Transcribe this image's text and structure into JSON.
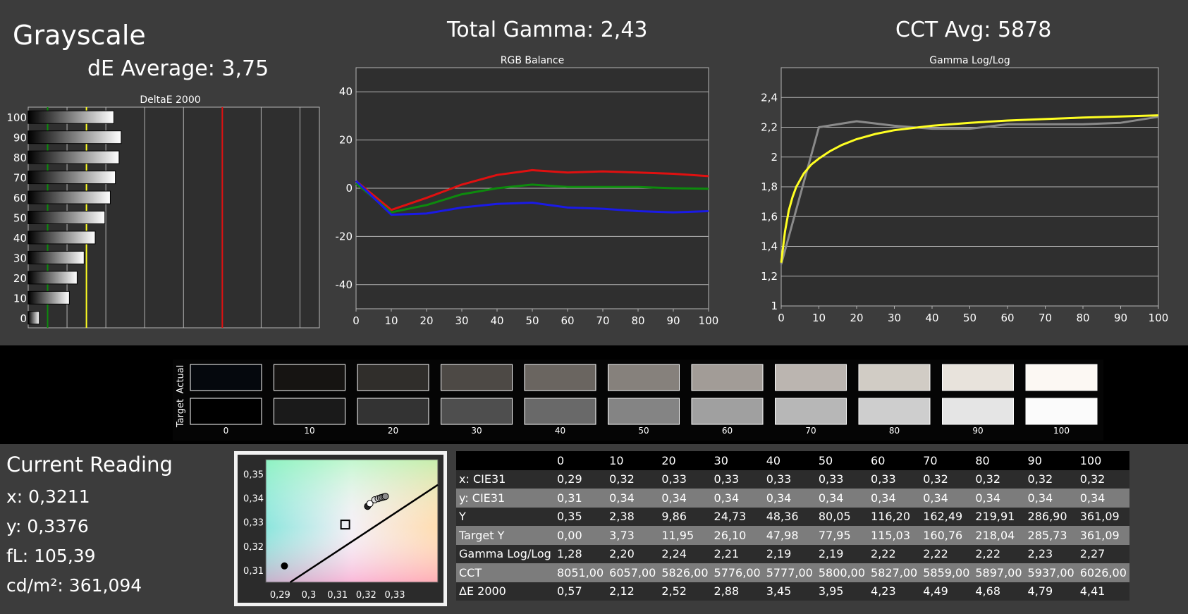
{
  "titles": {
    "grayscale": "Grayscale",
    "de_average": "dE Average: 3,75",
    "total_gamma": "Total Gamma: 2,43",
    "cct_avg": "CCT Avg: 5878"
  },
  "current_reading": {
    "title": "Current Reading",
    "x": "x: 0,3211",
    "y": "y: 0,3376",
    "fl": "fL: 105,39",
    "cdm2": "cd/m²: 361,094"
  },
  "colors": {
    "red": "#e01010",
    "green": "#0d8a0d",
    "blue": "#1a1ae6",
    "yellow": "#ffff22",
    "gray": "#8a8a8a",
    "grid": "#b4b4b4",
    "plot_bg": "#2f2f2f"
  },
  "chart_data": [
    {
      "type": "bar",
      "title": "DeltaE 2000",
      "orientation": "horizontal",
      "categories": [
        "0",
        "10",
        "20",
        "30",
        "40",
        "50",
        "60",
        "70",
        "80",
        "90",
        "100"
      ],
      "values": [
        0.57,
        2.12,
        2.52,
        2.88,
        3.45,
        3.95,
        4.23,
        4.49,
        4.68,
        4.79,
        4.41
      ],
      "xlim": [
        0,
        15
      ],
      "xticks": [
        "0",
        "2",
        "4",
        "6",
        "8",
        "10",
        "12",
        "14"
      ],
      "reference_lines": [
        {
          "value": 1,
          "color": "green"
        },
        {
          "value": 3,
          "color": "yellow"
        },
        {
          "value": 10,
          "color": "red"
        }
      ]
    },
    {
      "type": "line",
      "title": "RGB Balance",
      "x": [
        0,
        10,
        20,
        30,
        40,
        50,
        60,
        70,
        80,
        90,
        100
      ],
      "ylim": [
        -50,
        50
      ],
      "xticks": [
        "0",
        "10",
        "20",
        "30",
        "40",
        "50",
        "60",
        "70",
        "80",
        "90",
        "100"
      ],
      "yticks": [
        {
          "v": 40,
          "label": "40"
        },
        {
          "v": 20,
          "label": "20"
        },
        {
          "v": 0,
          "label": "0"
        },
        {
          "v": -20,
          "label": "-20"
        },
        {
          "v": -40,
          "label": "-40"
        }
      ],
      "series": [
        {
          "color": "red",
          "values": [
            3,
            -9,
            -4,
            1.5,
            5.5,
            7.5,
            6.5,
            7,
            6.5,
            6,
            5
          ]
        },
        {
          "color": "green",
          "values": [
            2,
            -10,
            -7,
            -2.5,
            0,
            1.5,
            0.5,
            0.5,
            0.5,
            0,
            -0.2
          ]
        },
        {
          "color": "blue",
          "values": [
            3,
            -11,
            -10.5,
            -8,
            -6.5,
            -6,
            -8,
            -8.5,
            -9.5,
            -10,
            -9.5
          ]
        }
      ]
    },
    {
      "type": "line",
      "title": "Gamma Log/Log",
      "x": [
        0,
        10,
        20,
        30,
        40,
        50,
        60,
        70,
        80,
        90,
        100
      ],
      "ylim": [
        1,
        2.6
      ],
      "xticks": [
        "0",
        "10",
        "20",
        "30",
        "40",
        "50",
        "60",
        "70",
        "80",
        "90",
        "100"
      ],
      "yticks": [
        {
          "v": 2.4,
          "label": "2,4"
        },
        {
          "v": 2.2,
          "label": "2,2"
        },
        {
          "v": 2.0,
          "label": "2"
        },
        {
          "v": 1.8,
          "label": "1,8"
        },
        {
          "v": 1.6,
          "label": "1,6"
        },
        {
          "v": 1.4,
          "label": "1,4"
        },
        {
          "v": 1.2,
          "label": "1,2"
        },
        {
          "v": 1.0,
          "label": "1"
        }
      ],
      "series": [
        {
          "color": "gray",
          "values": [
            1.28,
            2.2,
            2.24,
            2.21,
            2.19,
            2.19,
            2.22,
            2.22,
            2.22,
            2.23,
            2.27
          ]
        },
        {
          "color": "yellow",
          "x": [
            0,
            1,
            2,
            3,
            4,
            6,
            8,
            10,
            13,
            16,
            20,
            25,
            30,
            40,
            50,
            60,
            70,
            80,
            90,
            100
          ],
          "values": [
            1.29,
            1.5,
            1.64,
            1.73,
            1.8,
            1.89,
            1.95,
            1.99,
            2.04,
            2.08,
            2.12,
            2.155,
            2.18,
            2.21,
            2.23,
            2.245,
            2.255,
            2.265,
            2.272,
            2.28
          ]
        }
      ]
    },
    {
      "type": "scatter",
      "title": "",
      "xlim": [
        0.285,
        0.345
      ],
      "ylim": [
        0.305,
        0.356
      ],
      "xticks": [
        {
          "v": 0.29,
          "label": "0,29"
        },
        {
          "v": 0.3,
          "label": "0,3"
        },
        {
          "v": 0.31,
          "label": "0,31"
        },
        {
          "v": 0.32,
          "label": "0,32"
        },
        {
          "v": 0.33,
          "label": "0,33"
        }
      ],
      "yticks": [
        {
          "v": 0.35,
          "label": "0,35"
        },
        {
          "v": 0.34,
          "label": "0,34"
        },
        {
          "v": 0.33,
          "label": "0,33"
        },
        {
          "v": 0.32,
          "label": "0,32"
        },
        {
          "v": 0.31,
          "label": "0,31"
        }
      ],
      "target": {
        "x": 0.3127,
        "y": 0.329
      },
      "locus_line": [
        [
          0.2935,
          0.305
        ],
        [
          0.345,
          0.3455
        ]
      ],
      "points": [
        {
          "x": 0.2915,
          "y": 0.3118,
          "fill": "#000000"
        },
        {
          "x": 0.3205,
          "y": 0.3366,
          "fill": "#222222"
        },
        {
          "x": 0.3213,
          "y": 0.3377,
          "fill": "#ffffff"
        },
        {
          "x": 0.323,
          "y": 0.3393,
          "fill": "#dcdcdc"
        },
        {
          "x": 0.3242,
          "y": 0.3398,
          "fill": "#c8c8c8"
        },
        {
          "x": 0.325,
          "y": 0.3401,
          "fill": "#b8b8b8"
        },
        {
          "x": 0.3256,
          "y": 0.3403,
          "fill": "#a8a8a8"
        },
        {
          "x": 0.3262,
          "y": 0.3405,
          "fill": "#989898"
        },
        {
          "x": 0.3267,
          "y": 0.3407,
          "fill": "#8a8a8a"
        }
      ]
    }
  ],
  "swatches": {
    "actual_label": "Actual",
    "target_label": "Target",
    "labels": [
      "0",
      "10",
      "20",
      "30",
      "40",
      "50",
      "60",
      "70",
      "80",
      "90",
      "100"
    ],
    "actual_colors": [
      "#05080d",
      "#161412",
      "#302e2b",
      "#4d4945",
      "#6a6560",
      "#86817c",
      "#a29c97",
      "#bbb5b0",
      "#d1ccc5",
      "#e8e3dc",
      "#fcf8f3"
    ],
    "target_colors": [
      "#000000",
      "#1a1a1a",
      "#333333",
      "#4e4e4e",
      "#696969",
      "#848484",
      "#a0a0a0",
      "#b7b7b7",
      "#cecece",
      "#e5e5e5",
      "#fbfbfb"
    ]
  },
  "table": {
    "columns": [
      "",
      "0",
      "10",
      "20",
      "30",
      "40",
      "50",
      "60",
      "70",
      "80",
      "90",
      "100"
    ],
    "rows": [
      {
        "label": "x: CIE31",
        "values": [
          "0,29",
          "0,32",
          "0,33",
          "0,33",
          "0,33",
          "0,33",
          "0,33",
          "0,32",
          "0,32",
          "0,32",
          "0,32"
        ]
      },
      {
        "label": "y: CIE31",
        "values": [
          "0,31",
          "0,34",
          "0,34",
          "0,34",
          "0,34",
          "0,34",
          "0,34",
          "0,34",
          "0,34",
          "0,34",
          "0,34"
        ]
      },
      {
        "label": "Y",
        "values": [
          "0,35",
          "2,38",
          "9,86",
          "24,73",
          "48,36",
          "80,05",
          "116,20",
          "162,49",
          "219,91",
          "286,90",
          "361,09"
        ]
      },
      {
        "label": "Target Y",
        "values": [
          "0,00",
          "3,73",
          "11,95",
          "26,10",
          "47,98",
          "77,95",
          "115,03",
          "160,76",
          "218,04",
          "285,73",
          "361,09"
        ]
      },
      {
        "label": "Gamma Log/Log",
        "values": [
          "1,28",
          "2,20",
          "2,24",
          "2,21",
          "2,19",
          "2,19",
          "2,22",
          "2,22",
          "2,22",
          "2,23",
          "2,27"
        ]
      },
      {
        "label": "CCT",
        "values": [
          "8051,00",
          "6057,00",
          "5826,00",
          "5776,00",
          "5777,00",
          "5800,00",
          "5827,00",
          "5859,00",
          "5897,00",
          "5937,00",
          "6026,00"
        ]
      },
      {
        "label": "ΔE 2000",
        "values": [
          "0,57",
          "2,12",
          "2,52",
          "2,88",
          "3,45",
          "3,95",
          "4,23",
          "4,49",
          "4,68",
          "4,79",
          "4,41"
        ]
      }
    ]
  }
}
